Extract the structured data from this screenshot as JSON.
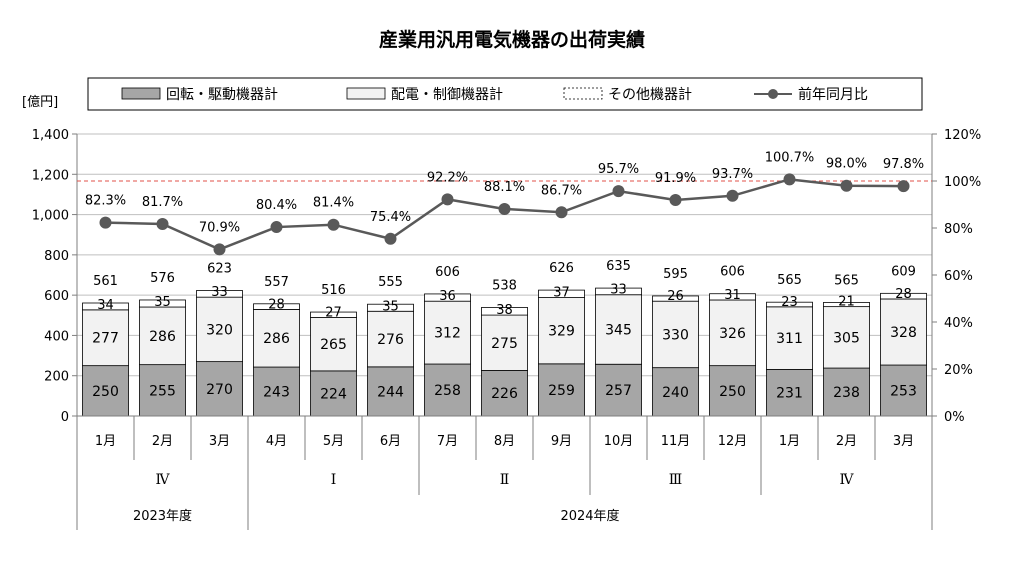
{
  "chart_data": {
    "type": "bar",
    "title": "産業用汎用電気機器の出荷実績",
    "y_unit_label": "[億円]",
    "ylim": [
      0,
      1400
    ],
    "y_ticks": [
      "0",
      "200",
      "400",
      "600",
      "800",
      "1,000",
      "1,200",
      "1,400"
    ],
    "y2lim": [
      0,
      120
    ],
    "y2_ticks": [
      "0%",
      "20%",
      "40%",
      "60%",
      "80%",
      "100%",
      "120%"
    ],
    "reference_line_pct": 100,
    "categories": [
      "1月",
      "2月",
      "3月",
      "4月",
      "5月",
      "6月",
      "7月",
      "8月",
      "9月",
      "10月",
      "11月",
      "12月",
      "1月",
      "2月",
      "3月"
    ],
    "series": [
      {
        "name": "回転・駆動機器計",
        "color": "#a6a6a6",
        "values": [
          250,
          255,
          270,
          243,
          224,
          244,
          258,
          226,
          259,
          257,
          240,
          250,
          231,
          238,
          253
        ]
      },
      {
        "name": "配電・制御機器計",
        "color": "#f2f2f2",
        "values": [
          277,
          286,
          320,
          286,
          265,
          276,
          312,
          275,
          329,
          345,
          330,
          326,
          311,
          305,
          328
        ]
      },
      {
        "name": "その他機器計",
        "color": "#ffffff",
        "values": [
          34,
          35,
          33,
          28,
          27,
          35,
          36,
          38,
          37,
          33,
          26,
          31,
          23,
          21,
          28
        ]
      }
    ],
    "totals": [
      561,
      576,
      623,
      557,
      516,
      555,
      606,
      538,
      626,
      635,
      595,
      606,
      565,
      565,
      609
    ],
    "yoy": {
      "name": "前年同月比",
      "values": [
        82.3,
        81.7,
        70.9,
        80.4,
        81.4,
        75.4,
        92.2,
        88.1,
        86.7,
        95.7,
        91.9,
        93.7,
        100.7,
        98.0,
        97.8
      ],
      "labels": [
        "82.3%",
        "81.7%",
        "70.9%",
        "80.4%",
        "81.4%",
        "75.4%",
        "92.2%",
        "88.1%",
        "86.7%",
        "95.7%",
        "91.9%",
        "93.7%",
        "100.7%",
        "98.0%",
        "97.8%"
      ]
    },
    "quarters": [
      {
        "label": "Ⅳ",
        "start": 0,
        "end": 2
      },
      {
        "label": "Ⅰ",
        "start": 3,
        "end": 5
      },
      {
        "label": "Ⅱ",
        "start": 6,
        "end": 8
      },
      {
        "label": "Ⅲ",
        "start": 9,
        "end": 11
      },
      {
        "label": "Ⅳ",
        "start": 12,
        "end": 14
      }
    ],
    "fiscal_years": [
      {
        "label": "2023年度",
        "start": 0,
        "end": 2
      },
      {
        "label": "2024年度",
        "start": 3,
        "end": 14
      }
    ],
    "legend_position": "top",
    "colors": {
      "line": "#595959",
      "reference": "#e0504a",
      "axis": "#7f7f7f"
    }
  }
}
